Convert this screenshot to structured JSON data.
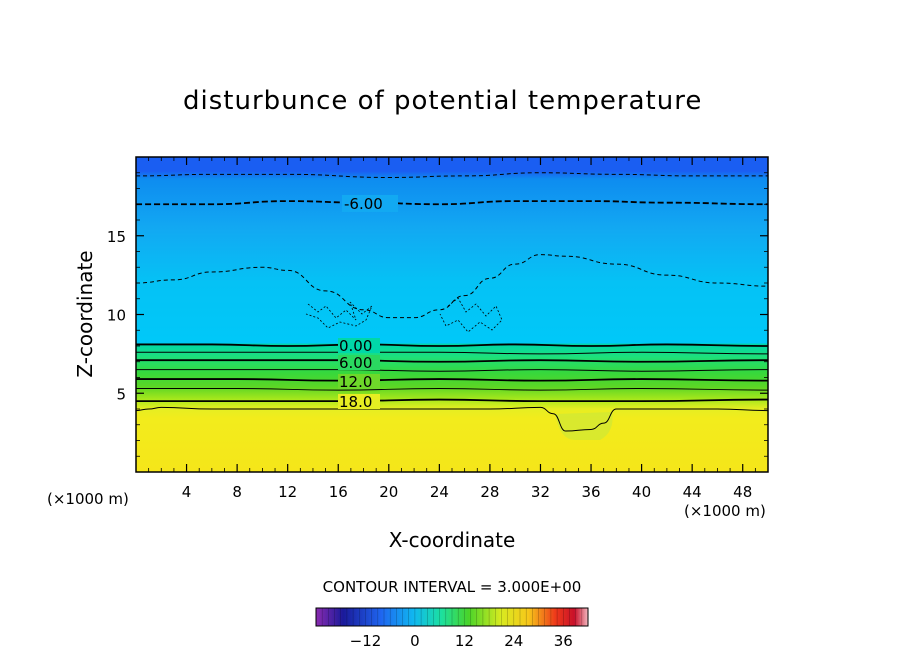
{
  "chart_data": {
    "type": "heatmap",
    "title": "disturbunce of potential temperature",
    "xlabel": "X-coordinate",
    "ylabel": "Z-coordinate",
    "x_unit": "(×1000 m)",
    "z_unit": "(×1000 m)",
    "xlim": [
      0,
      50
    ],
    "ylim": [
      0,
      20
    ],
    "x_ticks": [
      4,
      8,
      12,
      16,
      20,
      24,
      28,
      32,
      36,
      40,
      44,
      48
    ],
    "y_ticks": [
      5,
      10,
      15
    ],
    "contour_interval_label": "CONTOUR INTERVAL = 3.000E+00",
    "colorbar": {
      "ticks": [
        -12,
        0,
        12,
        24,
        36
      ],
      "range": [
        -24,
        42
      ]
    },
    "contour_labels": [
      "-6.00",
      "0.00",
      "6.00",
      "12.0",
      "18.0"
    ],
    "contours": [
      {
        "level": -9,
        "x": [
          0,
          6,
          12,
          20,
          26,
          32,
          38,
          44,
          50
        ],
        "z": [
          18.8,
          18.9,
          18.9,
          18.7,
          18.8,
          19.0,
          18.9,
          18.8,
          18.8
        ]
      },
      {
        "level": -6,
        "x": [
          0,
          6,
          12,
          18,
          24,
          30,
          36,
          42,
          50
        ],
        "z": [
          17.0,
          17.0,
          17.2,
          17.1,
          17.0,
          17.2,
          17.2,
          17.1,
          17.0
        ]
      },
      {
        "level": -3,
        "x": [
          0,
          3,
          6,
          10,
          12,
          15,
          18,
          20,
          22,
          24,
          26,
          28,
          30,
          32,
          34,
          38,
          42,
          46,
          50
        ],
        "z": [
          12.0,
          12.2,
          12.7,
          13.0,
          12.8,
          11.5,
          10.3,
          9.8,
          9.8,
          10.3,
          11.2,
          12.3,
          13.2,
          13.8,
          13.7,
          13.2,
          12.5,
          12.0,
          11.8
        ]
      },
      {
        "level": 0,
        "x": [
          0,
          6,
          12,
          18,
          24,
          30,
          36,
          42,
          50
        ],
        "z": [
          8.1,
          8.1,
          8.0,
          8.1,
          8.0,
          8.1,
          8.0,
          8.1,
          8.0
        ]
      },
      {
        "level": 3,
        "x": [
          0,
          8,
          16,
          24,
          32,
          40,
          50
        ],
        "z": [
          7.6,
          7.6,
          7.6,
          7.6,
          7.5,
          7.6,
          7.5
        ]
      },
      {
        "level": 6,
        "x": [
          0,
          8,
          16,
          24,
          32,
          40,
          50
        ],
        "z": [
          7.1,
          7.1,
          7.1,
          7.0,
          7.1,
          7.0,
          7.1
        ]
      },
      {
        "level": 9,
        "x": [
          0,
          8,
          16,
          24,
          32,
          40,
          50
        ],
        "z": [
          6.5,
          6.5,
          6.5,
          6.4,
          6.5,
          6.4,
          6.5
        ]
      },
      {
        "level": 12,
        "x": [
          0,
          8,
          16,
          24,
          32,
          40,
          50
        ],
        "z": [
          5.9,
          5.9,
          5.8,
          5.9,
          5.8,
          5.9,
          5.8
        ]
      },
      {
        "level": 15,
        "x": [
          0,
          8,
          16,
          24,
          32,
          40,
          50
        ],
        "z": [
          5.3,
          5.3,
          5.2,
          5.3,
          5.2,
          5.3,
          5.2
        ]
      },
      {
        "level": 18,
        "x": [
          0,
          8,
          16,
          24,
          32,
          40,
          50
        ],
        "z": [
          4.5,
          4.5,
          4.5,
          4.6,
          4.5,
          4.5,
          4.6
        ]
      },
      {
        "level": 21,
        "x": [
          0,
          1,
          2,
          6,
          10,
          16,
          22,
          28,
          32,
          33,
          34,
          36,
          37,
          38,
          42,
          46,
          50
        ],
        "z": [
          3.9,
          4.0,
          4.1,
          4.0,
          4.0,
          4.0,
          4.0,
          4.0,
          4.1,
          3.7,
          2.6,
          2.7,
          3.1,
          4.0,
          4.0,
          4.0,
          3.9
        ]
      }
    ]
  }
}
